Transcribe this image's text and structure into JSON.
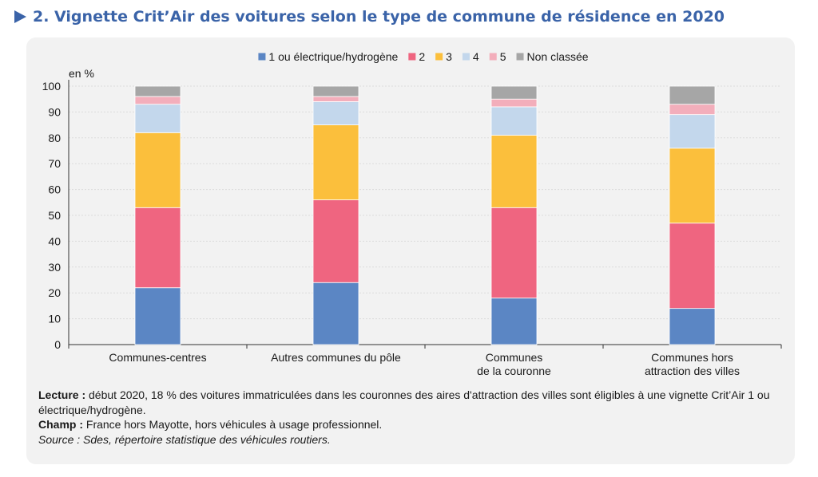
{
  "title": "2. Vignette Crit’Air des voitures selon le type de commune de résidence en 2020",
  "notes": {
    "lecture_label": "Lecture :",
    "lecture_text": " début 2020, 18 % des voitures immatriculées dans les couronnes des aires d'attraction des villes sont éligibles à une vignette Crit’Air 1 ou électrique/hydrogène.",
    "champ_label": "Champ :",
    "champ_text": " France hors Mayotte, hors véhicules à usage professionnel.",
    "source": "Source : Sdes, répertoire statistique des véhicules routiers."
  },
  "chart_data": {
    "type": "bar",
    "stacked": true,
    "ylabel": "en %",
    "ylim": [
      0,
      100
    ],
    "yticks": [
      0,
      10,
      20,
      30,
      40,
      50,
      60,
      70,
      80,
      90,
      100
    ],
    "grid": true,
    "legend_position": "top",
    "categories": [
      [
        "Communes-centres"
      ],
      [
        "Autres communes du pôle"
      ],
      [
        "Communes",
        "de la couronne"
      ],
      [
        "Communes hors",
        "attraction des villes"
      ]
    ],
    "series": [
      {
        "name": "1 ou électrique/hydrogène",
        "color": "#5b86c4",
        "values": [
          22,
          24,
          18,
          14
        ]
      },
      {
        "name": "2",
        "color": "#ef6580",
        "values": [
          31,
          32,
          35,
          33
        ]
      },
      {
        "name": "3",
        "color": "#fbbf3c",
        "values": [
          29,
          29,
          28,
          29
        ]
      },
      {
        "name": "4",
        "color": "#c3d7ec",
        "values": [
          11,
          9,
          11,
          13
        ]
      },
      {
        "name": "5",
        "color": "#f3aebb",
        "values": [
          3,
          2,
          3,
          4
        ]
      },
      {
        "name": "Non classée",
        "color": "#a6a6a6",
        "values": [
          4,
          4,
          5,
          7
        ]
      }
    ]
  }
}
